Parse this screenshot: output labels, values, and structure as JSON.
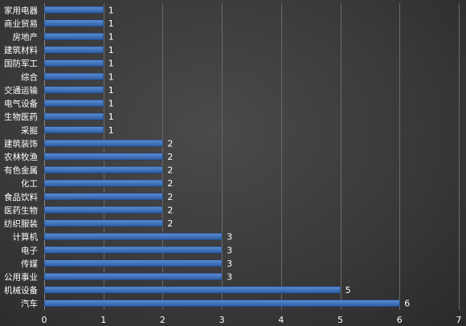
{
  "chart_data": {
    "type": "bar",
    "orientation": "horizontal",
    "categories": [
      "家用电器",
      "商业贸易",
      "房地产",
      "建筑材料",
      "国防军工",
      "综合",
      "交通运输",
      "电气设备",
      "生物医药",
      "采掘",
      "建筑装饰",
      "农林牧渔",
      "有色金属",
      "化工",
      "食品饮料",
      "医药生物",
      "纺织服装",
      "计算机",
      "电子",
      "传媒",
      "公用事业",
      "机械设备",
      "汽车"
    ],
    "values": [
      1,
      1,
      1,
      1,
      1,
      1,
      1,
      1,
      1,
      1,
      2,
      2,
      2,
      2,
      2,
      2,
      2,
      3,
      3,
      3,
      3,
      5,
      6
    ],
    "xlim": [
      0,
      7
    ],
    "xticks": [
      0,
      1,
      2,
      3,
      4,
      5,
      6,
      7
    ],
    "grid": true,
    "data_labels": true,
    "colors": {
      "bar_fill_light": "#5b8fd6",
      "bar_fill_dark": "#2c5aa0",
      "bar_edge": "#1e3f75",
      "text": "#ffffff",
      "grid": "#6a6a6a"
    }
  }
}
